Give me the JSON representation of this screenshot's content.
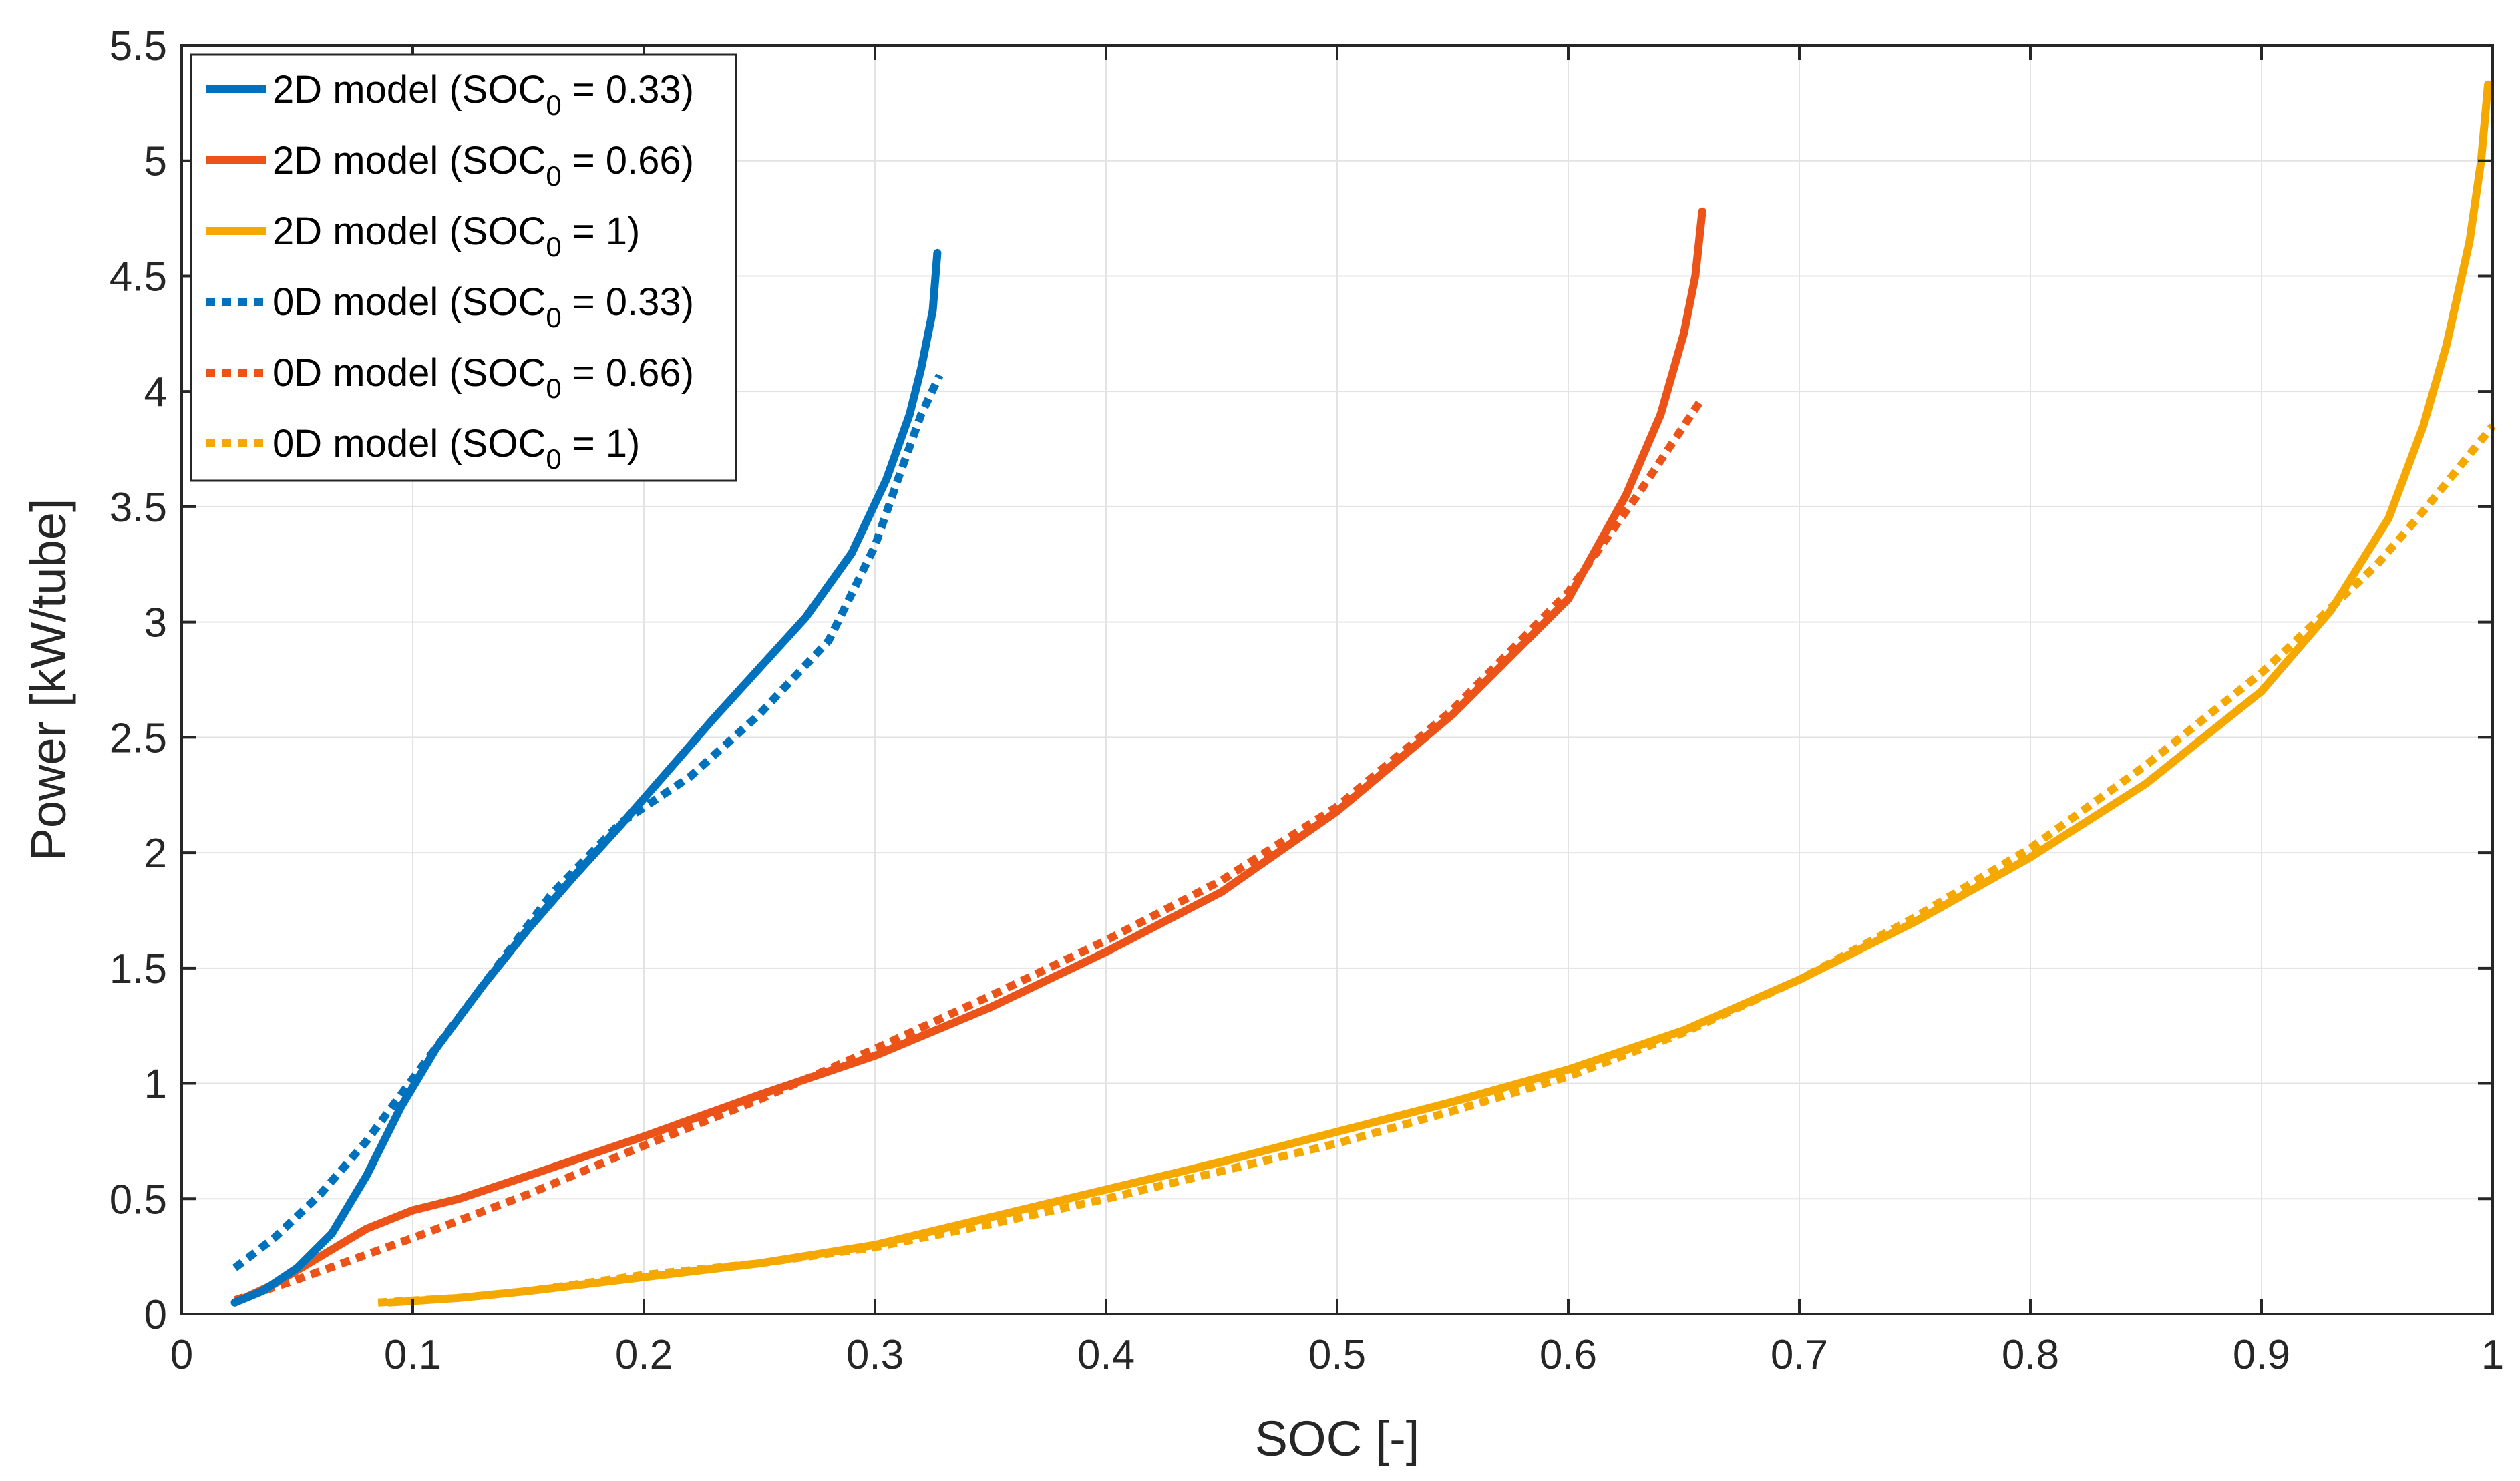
{
  "chart_data": {
    "type": "line",
    "title": "",
    "xlabel": "SOC [-]",
    "ylabel": "Power [kW/tube]",
    "xlim": [
      0,
      1
    ],
    "ylim": [
      0,
      5.5
    ],
    "grid": true,
    "legend_position": "top-left",
    "xticks": [
      "0",
      "0.1",
      "0.2",
      "0.3",
      "0.4",
      "0.5",
      "0.6",
      "0.7",
      "0.8",
      "0.9",
      "1"
    ],
    "yticks": [
      "0",
      "0.5",
      "1",
      "1.5",
      "2",
      "2.5",
      "3",
      "3.5",
      "4",
      "4.5",
      "5",
      "5.5"
    ],
    "series": [
      {
        "name": "2D model (SOC0 = 0.33)",
        "label_main": "2D model (SOC",
        "label_sub": "0",
        "label_end": " = 0.33)",
        "color": "#0072BD",
        "style": "solid",
        "x": [
          0.023,
          0.035,
          0.05,
          0.065,
          0.08,
          0.095,
          0.11,
          0.13,
          0.15,
          0.17,
          0.19,
          0.21,
          0.23,
          0.25,
          0.27,
          0.29,
          0.305,
          0.315,
          0.32,
          0.325,
          0.327
        ],
        "y": [
          0.05,
          0.1,
          0.2,
          0.35,
          0.6,
          0.9,
          1.15,
          1.42,
          1.67,
          1.9,
          2.12,
          2.35,
          2.58,
          2.8,
          3.02,
          3.3,
          3.62,
          3.9,
          4.1,
          4.35,
          4.6
        ]
      },
      {
        "name": "2D model (SOC0 = 0.66)",
        "label_main": "2D model (SOC",
        "label_sub": "0",
        "label_end": " = 0.66)",
        "color": "#EB5318",
        "style": "solid",
        "x": [
          0.023,
          0.04,
          0.06,
          0.08,
          0.1,
          0.12,
          0.15,
          0.2,
          0.25,
          0.3,
          0.35,
          0.4,
          0.45,
          0.5,
          0.55,
          0.6,
          0.625,
          0.64,
          0.65,
          0.655,
          0.658
        ],
        "y": [
          0.05,
          0.13,
          0.25,
          0.37,
          0.45,
          0.5,
          0.6,
          0.77,
          0.95,
          1.12,
          1.33,
          1.57,
          1.83,
          2.18,
          2.6,
          3.1,
          3.55,
          3.9,
          4.25,
          4.5,
          4.78
        ]
      },
      {
        "name": "2D model (SOC0 = 1)",
        "label_main": "2D model (SOC",
        "label_sub": "0",
        "label_end": " = 1)",
        "color": "#F5A900",
        "style": "solid",
        "x": [
          0.09,
          0.12,
          0.15,
          0.2,
          0.25,
          0.3,
          0.35,
          0.4,
          0.45,
          0.5,
          0.55,
          0.6,
          0.65,
          0.7,
          0.75,
          0.8,
          0.85,
          0.9,
          0.93,
          0.955,
          0.97,
          0.98,
          0.99,
          0.995,
          0.998
        ],
        "y": [
          0.05,
          0.07,
          0.1,
          0.16,
          0.22,
          0.3,
          0.42,
          0.54,
          0.66,
          0.79,
          0.92,
          1.06,
          1.23,
          1.45,
          1.7,
          1.98,
          2.3,
          2.7,
          3.05,
          3.45,
          3.85,
          4.2,
          4.65,
          5.0,
          5.33
        ]
      },
      {
        "name": "0D model (SOC0 = 0.33)",
        "label_main": "0D model (SOC",
        "label_sub": "0",
        "label_end": " = 0.33)",
        "color": "#0072BD",
        "style": "dotted",
        "x": [
          0.023,
          0.04,
          0.06,
          0.08,
          0.1,
          0.13,
          0.16,
          0.19,
          0.22,
          0.25,
          0.28,
          0.3,
          0.31,
          0.32,
          0.328
        ],
        "y": [
          0.2,
          0.33,
          0.52,
          0.75,
          1.02,
          1.42,
          1.82,
          2.13,
          2.33,
          2.6,
          2.92,
          3.33,
          3.62,
          3.9,
          4.07
        ]
      },
      {
        "name": "0D model (SOC0 = 0.66)",
        "label_main": "0D model (SOC",
        "label_sub": "0",
        "label_end": " = 0.66)",
        "color": "#EB5318",
        "style": "dotted",
        "x": [
          0.023,
          0.05,
          0.1,
          0.15,
          0.2,
          0.25,
          0.3,
          0.35,
          0.4,
          0.45,
          0.5,
          0.55,
          0.6,
          0.63,
          0.658
        ],
        "y": [
          0.06,
          0.15,
          0.33,
          0.52,
          0.73,
          0.93,
          1.15,
          1.38,
          1.62,
          1.88,
          2.2,
          2.62,
          3.13,
          3.55,
          3.97
        ]
      },
      {
        "name": "0D model (SOC0 = 1)",
        "label_main": "0D model (SOC",
        "label_sub": "0",
        "label_end": " = 1)",
        "color": "#F5A900",
        "style": "dotted",
        "x": [
          0.085,
          0.12,
          0.15,
          0.2,
          0.25,
          0.3,
          0.35,
          0.4,
          0.45,
          0.5,
          0.55,
          0.6,
          0.65,
          0.7,
          0.75,
          0.8,
          0.85,
          0.9,
          0.95,
          0.97,
          1.0
        ],
        "y": [
          0.05,
          0.07,
          0.1,
          0.17,
          0.22,
          0.29,
          0.39,
          0.5,
          0.62,
          0.74,
          0.88,
          1.03,
          1.22,
          1.45,
          1.72,
          2.02,
          2.38,
          2.78,
          3.25,
          3.48,
          3.85
        ]
      }
    ]
  }
}
